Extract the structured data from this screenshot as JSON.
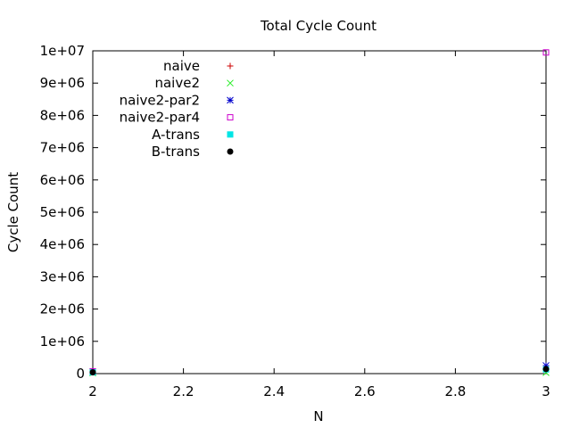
{
  "chart_data": {
    "type": "scatter",
    "title": "Total Cycle Count",
    "xlabel": "N",
    "ylabel": "Cycle Count",
    "xlim": [
      2,
      3
    ],
    "ylim": [
      0,
      10000000
    ],
    "x_ticks": [
      2,
      2.2,
      2.4,
      2.6,
      2.8,
      3
    ],
    "x_tick_labels": [
      "2",
      "2.2",
      "2.4",
      "2.6",
      "2.8",
      "3"
    ],
    "y_ticks": [
      0,
      1000000,
      2000000,
      3000000,
      4000000,
      5000000,
      6000000,
      7000000,
      8000000,
      9000000,
      10000000
    ],
    "y_tick_labels": [
      "0",
      "1e+06",
      "2e+06",
      "3e+06",
      "4e+06",
      "5e+06",
      "6e+06",
      "7e+06",
      "8e+06",
      "9e+06",
      "1e+07"
    ],
    "grid": false,
    "legend_position": "top-left",
    "series": [
      {
        "name": "naive",
        "marker": "plus",
        "color": "#cc0000",
        "x": [
          2,
          3
        ],
        "y": [
          50000,
          170000
        ]
      },
      {
        "name": "naive2",
        "marker": "cross",
        "color": "#22ee22",
        "x": [
          2,
          3
        ],
        "y": [
          20000,
          30000
        ]
      },
      {
        "name": "naive2-par2",
        "marker": "star",
        "color": "#0000cc",
        "x": [
          2,
          3
        ],
        "y": [
          60000,
          250000
        ]
      },
      {
        "name": "naive2-par4",
        "marker": "open-square",
        "color": "#cc00cc",
        "x": [
          2,
          3
        ],
        "y": [
          70000,
          9950000
        ]
      },
      {
        "name": "A-trans",
        "marker": "filled-square",
        "color": "#00e5e5",
        "x": [
          2,
          3
        ],
        "y": [
          40000,
          130000
        ]
      },
      {
        "name": "B-trans",
        "marker": "filled-circle",
        "color": "#000000",
        "x": [
          2,
          3
        ],
        "y": [
          40000,
          140000
        ]
      }
    ]
  }
}
